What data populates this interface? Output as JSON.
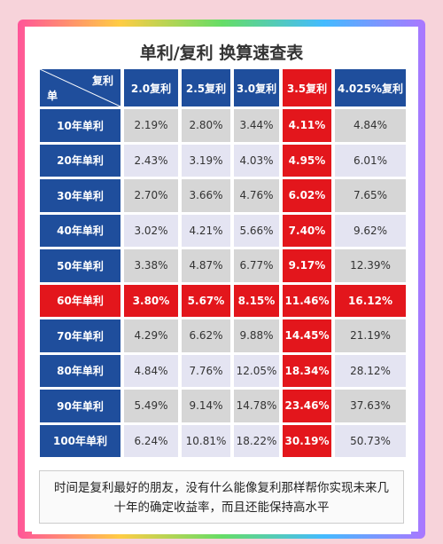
{
  "header": {
    "title": "单利/复利 换算速查表"
  },
  "table": {
    "corner": {
      "top": "复利",
      "bottom": "单"
    },
    "columns": [
      "2.0复利",
      "2.5复利",
      "3.0复利",
      "3.5复利",
      "4.025%复利"
    ],
    "rows": [
      {
        "label": "10年单利",
        "values": [
          "2.19%",
          "2.80%",
          "3.44%",
          "4.11%",
          "4.84%"
        ]
      },
      {
        "label": "20年单利",
        "values": [
          "2.43%",
          "3.19%",
          "4.03%",
          "4.95%",
          "6.01%"
        ]
      },
      {
        "label": "30年单利",
        "values": [
          "2.70%",
          "3.66%",
          "4.76%",
          "6.02%",
          "7.65%"
        ]
      },
      {
        "label": "40年单利",
        "values": [
          "3.02%",
          "4.21%",
          "5.66%",
          "7.40%",
          "9.62%"
        ]
      },
      {
        "label": "50年单利",
        "values": [
          "3.38%",
          "4.87%",
          "6.77%",
          "9.17%",
          "12.39%"
        ]
      },
      {
        "label": "60年单利",
        "values": [
          "3.80%",
          "5.67%",
          "8.15%",
          "11.46%",
          "16.12%"
        ]
      },
      {
        "label": "70年单利",
        "values": [
          "4.29%",
          "6.62%",
          "9.88%",
          "14.45%",
          "21.19%"
        ]
      },
      {
        "label": "80年单利",
        "values": [
          "4.84%",
          "7.76%",
          "12.05%",
          "18.34%",
          "28.12%"
        ]
      },
      {
        "label": "90年单利",
        "values": [
          "5.49%",
          "9.14%",
          "14.78%",
          "23.46%",
          "37.63%"
        ]
      },
      {
        "label": "100年单利",
        "values": [
          "6.24%",
          "10.81%",
          "18.22%",
          "30.19%",
          "50.73%"
        ]
      }
    ]
  },
  "footer": {
    "lines": [
      "时间是复利最好的朋友，没有什么能像复利那样帮你实现未来几",
      "十年的确定收益率，而且还能保持高水平"
    ]
  }
}
